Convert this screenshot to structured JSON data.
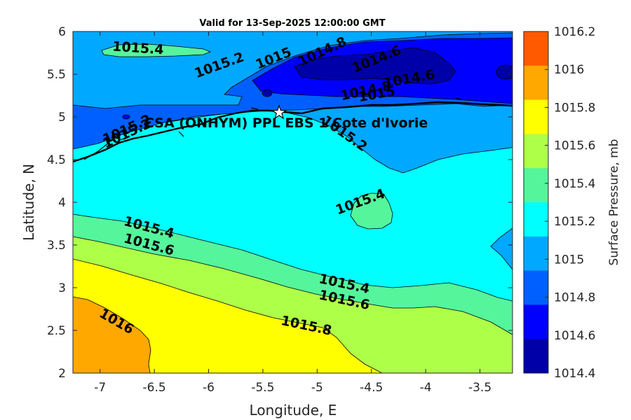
{
  "chart_data": {
    "type": "contour",
    "title": "Valid for 13-Sep-2025 12:00:00 GMT",
    "xlabel": "Longitude, E",
    "ylabel": "Latitude, N",
    "xlim": [
      -7.25,
      -3.2
    ],
    "ylim": [
      2,
      6
    ],
    "xticks": [
      "-7",
      "-6.5",
      "-6",
      "-5.5",
      "-5",
      "-4.5",
      "-4",
      "-3.5"
    ],
    "yticks": [
      "6",
      "5.5",
      "5",
      "4.5",
      "4",
      "3.5",
      "3",
      "2.5",
      "2"
    ],
    "colorbar": {
      "label": "Surface Pressure, mb",
      "levels": [
        "1016.2",
        "1016",
        "1015.8",
        "1015.6",
        "1015.4",
        "1015.2",
        "1015",
        "1014.8",
        "1014.6",
        "1014.4"
      ],
      "colors": [
        "#ff5a00",
        "#ffa800",
        "#ffff00",
        "#aeff48",
        "#55f59c",
        "#00ffff",
        "#00a8ff",
        "#0060ff",
        "#0000ff",
        "#0000a8"
      ]
    },
    "contour_labels": [
      {
        "text": "1015.4",
        "lon": -6.65,
        "lat": 5.8
      },
      {
        "text": "1015.2",
        "lon": -5.9,
        "lat": 5.6
      },
      {
        "text": "1015",
        "lon": -5.4,
        "lat": 5.68
      },
      {
        "text": "1014.8",
        "lon": -4.95,
        "lat": 5.76
      },
      {
        "text": "1014.6",
        "lon": -4.45,
        "lat": 5.67
      },
      {
        "text": "1014.6",
        "lon": -4.15,
        "lat": 5.44
      },
      {
        "text": "1014.8",
        "lon": -4.55,
        "lat": 5.3
      },
      {
        "text": "1015",
        "lon": -4.45,
        "lat": 5.26
      },
      {
        "text": "1015.2",
        "lon": -4.75,
        "lat": 4.8
      },
      {
        "text": "1015.4",
        "lon": -4.6,
        "lat": 4.0
      },
      {
        "text": "1015.4",
        "lon": -6.55,
        "lat": 3.7
      },
      {
        "text": "1015.6",
        "lon": -6.55,
        "lat": 3.5
      },
      {
        "text": "1015.4",
        "lon": -4.75,
        "lat": 3.04
      },
      {
        "text": "1015.6",
        "lon": -4.75,
        "lat": 2.85
      },
      {
        "text": "1015.8",
        "lon": -5.1,
        "lat": 2.55
      },
      {
        "text": "1016",
        "lon": -6.85,
        "lat": 2.6
      },
      {
        "text": "1015.2",
        "lon": -6.75,
        "lat": 4.8
      },
      {
        "text": "1015.2",
        "lon": -6.75,
        "lat": 4.85
      }
    ],
    "site": {
      "name": "CSA (ONHYM) PPL EBS 1 Cote d'Ivorie",
      "lon": -5.35,
      "lat": 5.05
    }
  }
}
